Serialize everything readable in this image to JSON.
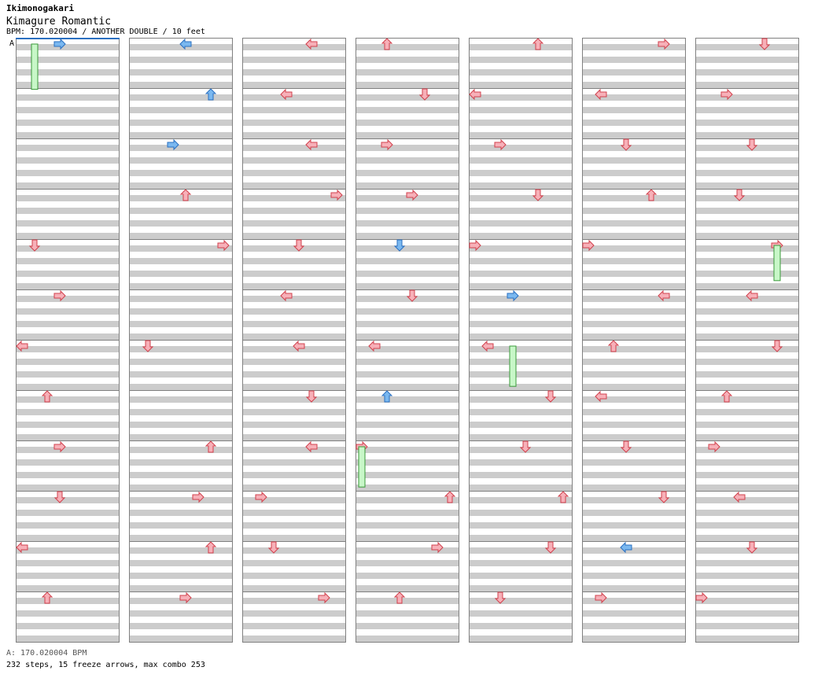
{
  "header": {
    "artist": "Ikimonogakari",
    "title": "Kimagure Romantic",
    "info": "BPM: 170.020004 / ANOTHER DOUBLE / 10 feet"
  },
  "bpm_marker": {
    "label": "A"
  },
  "footer": {
    "bpm_line": "A: 170.020004 BPM",
    "stats": "232 steps, 15 freeze arrows, max combo 253"
  },
  "colors": {
    "red_fill": "#f7b0b8",
    "red_stroke": "#d0404c",
    "blue_fill": "#7ab8f0",
    "blue_stroke": "#2a6fc0",
    "freeze_fill": "#c8f7c8",
    "freeze_stroke": "#3a9a3a",
    "stripe": "#cccccc",
    "border": "#808080"
  },
  "chart_data": {
    "type": "table",
    "lanes": [
      "P1-left",
      "P1-down",
      "P1-up",
      "P1-right",
      "P2-left",
      "P2-down",
      "P2-up",
      "P2-right"
    ],
    "columns": 7,
    "measures_per_column": 12,
    "measures_in_chart": 84,
    "notes": [
      [
        0,
        3,
        "right",
        "blue"
      ],
      [
        4,
        1,
        "down",
        "red"
      ],
      [
        5,
        3,
        "right",
        "red"
      ],
      [
        6,
        0,
        "left",
        "red"
      ],
      [
        7,
        2,
        "up",
        "red"
      ],
      [
        8,
        3,
        "right",
        "red"
      ],
      [
        9,
        3,
        "down",
        "red"
      ],
      [
        10,
        0,
        "left",
        "red"
      ],
      [
        11,
        2,
        "up",
        "red"
      ],
      [
        12,
        4,
        "left",
        "blue"
      ],
      [
        13,
        6,
        "up",
        "blue"
      ],
      [
        14,
        3,
        "right",
        "blue"
      ],
      [
        15,
        4,
        "up",
        "red"
      ],
      [
        16,
        7,
        "right",
        "red"
      ],
      [
        18,
        1,
        "down",
        "red"
      ],
      [
        20,
        6,
        "up",
        "red"
      ],
      [
        21,
        5,
        "right",
        "red"
      ],
      [
        22,
        6,
        "up",
        "red"
      ],
      [
        23,
        4,
        "right",
        "red"
      ],
      [
        24,
        5,
        "left",
        "red"
      ],
      [
        25,
        3,
        "left",
        "red"
      ],
      [
        26,
        5,
        "left",
        "red"
      ],
      [
        27,
        7,
        "right",
        "red"
      ],
      [
        28,
        4,
        "down",
        "red"
      ],
      [
        29,
        3,
        "left",
        "red"
      ],
      [
        30,
        4,
        "left",
        "red"
      ],
      [
        31,
        5,
        "down",
        "red"
      ],
      [
        32,
        5,
        "left",
        "red"
      ],
      [
        33,
        1,
        "right",
        "red"
      ],
      [
        34,
        2,
        "down",
        "red"
      ],
      [
        35,
        6,
        "right",
        "red"
      ],
      [
        36,
        2,
        "up",
        "red"
      ],
      [
        37,
        5,
        "down",
        "red"
      ],
      [
        38,
        2,
        "right",
        "red"
      ],
      [
        39,
        4,
        "right",
        "red"
      ],
      [
        40,
        3,
        "down",
        "blue"
      ],
      [
        41,
        4,
        "down",
        "red"
      ],
      [
        42,
        1,
        "left",
        "red"
      ],
      [
        43,
        2,
        "up",
        "blue"
      ],
      [
        44,
        0,
        "right",
        "red"
      ],
      [
        45,
        7,
        "up",
        "red"
      ],
      [
        46,
        6,
        "right",
        "red"
      ],
      [
        47,
        3,
        "up",
        "red"
      ],
      [
        48,
        5,
        "up",
        "red"
      ],
      [
        49,
        0,
        "left",
        "red"
      ],
      [
        50,
        2,
        "right",
        "red"
      ],
      [
        51,
        5,
        "down",
        "red"
      ],
      [
        52,
        0,
        "right",
        "red"
      ],
      [
        53,
        3,
        "right",
        "blue"
      ],
      [
        54,
        1,
        "left",
        "red"
      ],
      [
        55,
        6,
        "down",
        "red"
      ],
      [
        56,
        4,
        "down",
        "red"
      ],
      [
        57,
        7,
        "up",
        "red"
      ],
      [
        58,
        6,
        "down",
        "red"
      ],
      [
        59,
        2,
        "down",
        "red"
      ],
      [
        60,
        6,
        "right",
        "red"
      ],
      [
        61,
        1,
        "left",
        "red"
      ],
      [
        62,
        3,
        "down",
        "red"
      ],
      [
        63,
        5,
        "up",
        "red"
      ],
      [
        64,
        0,
        "right",
        "red"
      ],
      [
        65,
        6,
        "left",
        "red"
      ],
      [
        66,
        2,
        "up",
        "red"
      ],
      [
        67,
        1,
        "left",
        "red"
      ],
      [
        68,
        3,
        "down",
        "red"
      ],
      [
        69,
        6,
        "down",
        "red"
      ],
      [
        70,
        3,
        "left",
        "blue"
      ],
      [
        71,
        1,
        "right",
        "red"
      ],
      [
        72,
        5,
        "down",
        "red"
      ],
      [
        73,
        2,
        "right",
        "red"
      ],
      [
        74,
        4,
        "down",
        "red"
      ],
      [
        75,
        3,
        "down",
        "red"
      ],
      [
        76,
        6,
        "right",
        "red"
      ],
      [
        77,
        4,
        "left",
        "red"
      ],
      [
        78,
        6,
        "down",
        "red"
      ],
      [
        79,
        2,
        "up",
        "red"
      ],
      [
        80,
        1,
        "right",
        "red"
      ],
      [
        81,
        3,
        "left",
        "red"
      ],
      [
        82,
        4,
        "down",
        "red"
      ],
      [
        83,
        0,
        "right",
        "red"
      ]
    ]
  }
}
